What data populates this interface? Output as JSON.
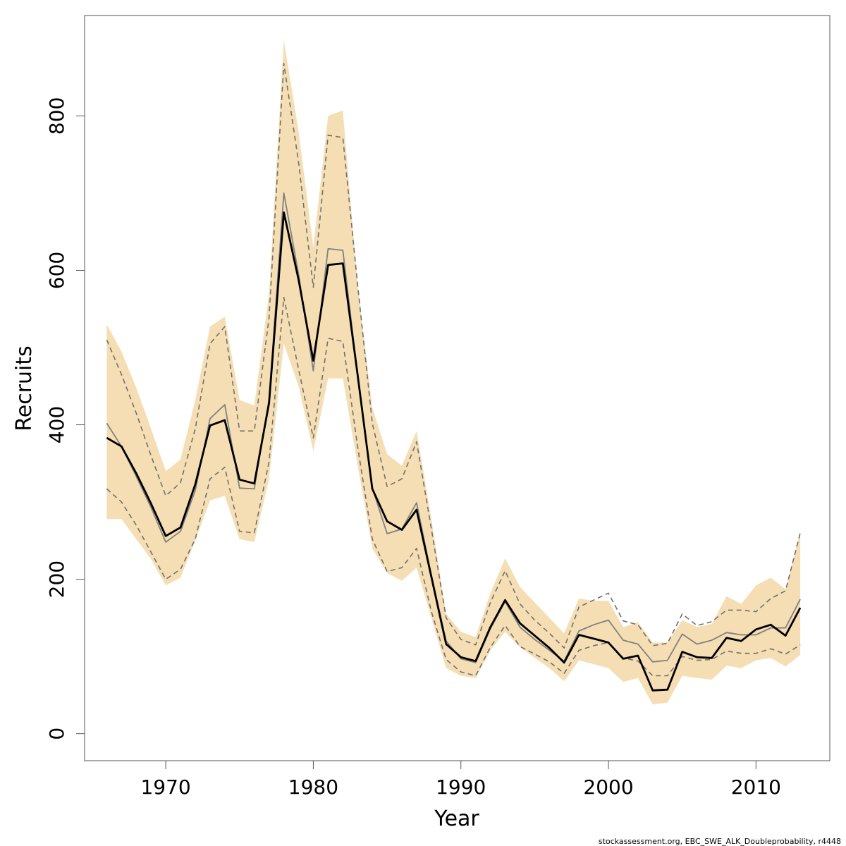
{
  "chart_data": {
    "type": "line",
    "title": "",
    "xlabel": "Year",
    "ylabel": "Recruits",
    "xlim": [
      1964.5,
      2015
    ],
    "ylim": [
      -35,
      930
    ],
    "x_ticks": [
      1970,
      1980,
      1990,
      2000,
      2010
    ],
    "y_ticks": [
      0,
      200,
      400,
      600,
      800
    ],
    "grid": false,
    "legend": "none",
    "footnote": "stockassessment.org, EBC_SWE_ALK_Doubleprobability, r4448",
    "colors": {
      "band": "#f5deb3",
      "estimate": "#000000",
      "previous": "#808080",
      "previous_ci": "#707070",
      "frame": "#555555"
    },
    "x": [
      1966,
      1967,
      1968,
      1969,
      1970,
      1971,
      1972,
      1973,
      1974,
      1975,
      1976,
      1977,
      1978,
      1979,
      1980,
      1981,
      1982,
      1983,
      1984,
      1985,
      1986,
      1987,
      1988,
      1989,
      1990,
      1991,
      1992,
      1993,
      1994,
      1995,
      1996,
      1997,
      1998,
      1999,
      2000,
      2001,
      2002,
      2003,
      2004,
      2005,
      2006,
      2007,
      2008,
      2009,
      2010,
      2011,
      2012,
      2013
    ],
    "series": [
      {
        "role": "band",
        "lower": [
          278,
          278,
          252,
          226,
          192,
          202,
          250,
          302,
          308,
          252,
          248,
          330,
          505,
          450,
          366,
          460,
          460,
          348,
          240,
          208,
          198,
          215,
          150,
          85,
          75,
          72,
          108,
          132,
          112,
          98,
          85,
          68,
          95,
          90,
          85,
          67,
          72,
          38,
          40,
          75,
          72,
          70,
          88,
          85,
          95,
          98,
          87,
          102
        ],
        "upper": [
          530,
          495,
          448,
          395,
          340,
          355,
          432,
          527,
          540,
          432,
          425,
          570,
          898,
          780,
          630,
          800,
          807,
          582,
          422,
          362,
          347,
          392,
          278,
          155,
          132,
          125,
          182,
          227,
          190,
          170,
          150,
          130,
          175,
          172,
          172,
          138,
          144,
          118,
          118,
          147,
          138,
          142,
          178,
          168,
          192,
          202,
          187,
          262
        ]
      },
      {
        "role": "estimate",
        "values": [
          383,
          372,
          337,
          298,
          256,
          267,
          323,
          399,
          406,
          329,
          324,
          428,
          675,
          588,
          483,
          607,
          609,
          465,
          317,
          275,
          264,
          290,
          203,
          116,
          99,
          94,
          138,
          173,
          143,
          127,
          111,
          92,
          128,
          123,
          118,
          97,
          101,
          56,
          57,
          106,
          99,
          98,
          124,
          120,
          135,
          141,
          127,
          163
        ]
      },
      {
        "role": "previous",
        "values": [
          402,
          372,
          333,
          293,
          248,
          262,
          315,
          408,
          426,
          318,
          317,
          433,
          700,
          595,
          470,
          628,
          626,
          465,
          318,
          259,
          265,
          299,
          205,
          120,
          97,
          92,
          136,
          171,
          138,
          122,
          108,
          94,
          133,
          141,
          147,
          121,
          116,
          93,
          95,
          129,
          116,
          121,
          131,
          128,
          128,
          137,
          137,
          174
        ]
      },
      {
        "role": "previous_ci_lower",
        "values": [
          317,
          300,
          270,
          235,
          200,
          213,
          252,
          330,
          345,
          262,
          260,
          352,
          565,
          472,
          383,
          512,
          508,
          372,
          252,
          210,
          215,
          240,
          158,
          96,
          80,
          75,
          112,
          140,
          113,
          103,
          93,
          78,
          108,
          114,
          118,
          98,
          94,
          75,
          75,
          100,
          95,
          96,
          107,
          104,
          104,
          110,
          103,
          115
        ]
      },
      {
        "role": "previous_ci_upper",
        "values": [
          510,
          465,
          415,
          360,
          308,
          325,
          395,
          505,
          527,
          392,
          392,
          538,
          868,
          740,
          578,
          775,
          772,
          582,
          402,
          320,
          330,
          378,
          265,
          150,
          122,
          115,
          170,
          211,
          168,
          147,
          130,
          111,
          164,
          173,
          182,
          146,
          141,
          114,
          117,
          155,
          140,
          145,
          160,
          160,
          158,
          175,
          185,
          260
        ]
      }
    ]
  }
}
